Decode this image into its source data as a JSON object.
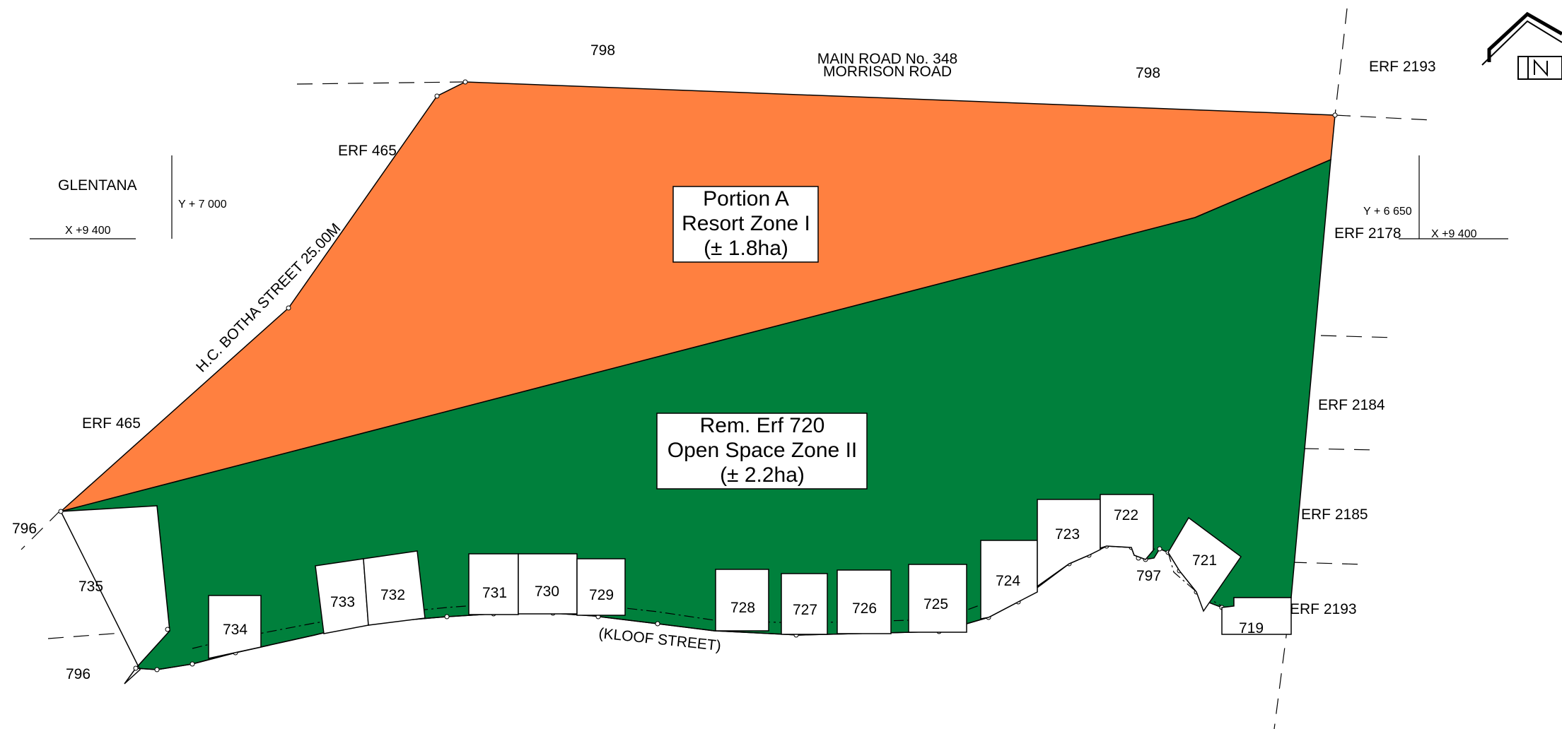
{
  "colors": {
    "resort_zone": "#FF8040",
    "open_space_zone": "#00803C",
    "line": "#000000"
  },
  "zones": {
    "portion_a": {
      "line1": "Portion A",
      "line2": "Resort Zone I",
      "line3": "(± 1.8ha)"
    },
    "rem_erf": {
      "line1": "Rem. Erf 720",
      "line2": "Open Space Zone II",
      "line3": "(± 2.2ha)"
    }
  },
  "roads": {
    "main_road_line1": "MAIN ROAD No. 348",
    "main_road_line2": "MORRISON ROAD",
    "botha_street": "H.C. BOTHA STREET 25.00M",
    "kloof_street": "(KLOOF STREET)"
  },
  "locality": "GLENTANA",
  "coords_left": {
    "y": "Y   + 7 000",
    "x": "X   +9 400"
  },
  "coords_right": {
    "y": "Y   + 6 650",
    "x": "X   +9 400"
  },
  "erf_labels": {
    "r798a": "798",
    "r798b": "798",
    "e2193top": "ERF 2193",
    "e465a": "ERF 465",
    "e465b": "ERF 465",
    "e2178": "ERF 2178",
    "e2184": "ERF 2184",
    "e2185": "ERF 2185",
    "e2193bot": "ERF 2193",
    "r796a": "796",
    "r735": "735",
    "r796b": "796",
    "r797": "797",
    "r719": "719"
  },
  "plots": {
    "p734": "734",
    "p733": "733",
    "p732": "732",
    "p731": "731",
    "p730": "730",
    "p729": "729",
    "p728": "728",
    "p727": "727",
    "p726": "726",
    "p725": "725",
    "p724": "724",
    "p723": "723",
    "p722": "722",
    "p721": "721"
  },
  "north_arrow_icon": "north-arrow-icon"
}
